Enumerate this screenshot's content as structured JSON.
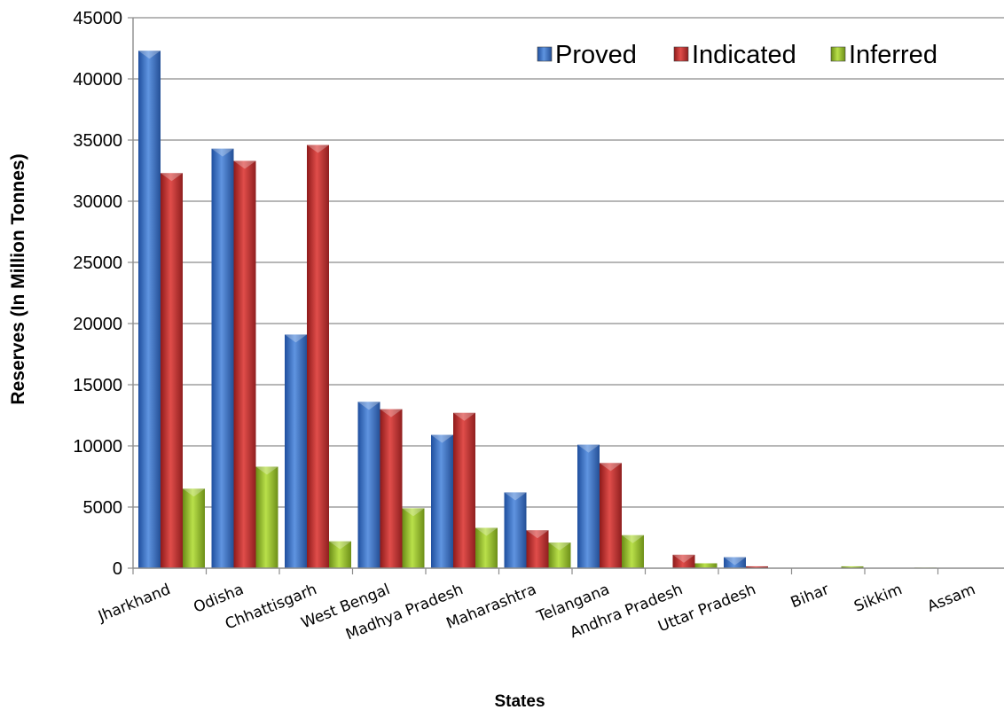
{
  "chart_data": {
    "type": "bar",
    "title": "",
    "xlabel": "States",
    "ylabel": "Reserves (In Million Tonnes)",
    "ylim": [
      0,
      45000
    ],
    "yticks": [
      0,
      5000,
      10000,
      15000,
      20000,
      25000,
      30000,
      35000,
      40000,
      45000
    ],
    "grid": true,
    "legend_position": "top-right",
    "categories": [
      "Jharkhand",
      "Odisha",
      "Chhattisgarh",
      "West Bengal",
      "Madhya Pradesh",
      "Maharashtra",
      "Telangana",
      "Andhra Pradesh",
      "Uttar Pradesh",
      "Bihar",
      "Sikkim",
      "Assam"
    ],
    "series": [
      {
        "name": "Proved",
        "color": "#3a6fc4",
        "values": [
          42300,
          34300,
          19100,
          13600,
          10900,
          6200,
          10100,
          0,
          900,
          0,
          0,
          0
        ]
      },
      {
        "name": "Indicated",
        "color": "#c0302f",
        "values": [
          32300,
          33300,
          34600,
          13000,
          12700,
          3100,
          8600,
          1100,
          150,
          0,
          0,
          0
        ]
      },
      {
        "name": "Inferred",
        "color": "#8fb82a",
        "values": [
          6500,
          8300,
          2200,
          4900,
          3300,
          2100,
          2700,
          400,
          0,
          150,
          50,
          30
        ]
      }
    ]
  }
}
